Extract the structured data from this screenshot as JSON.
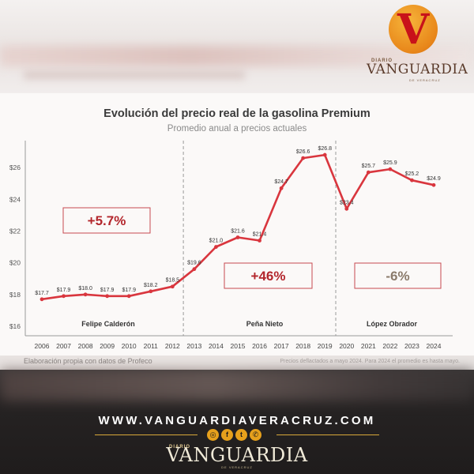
{
  "branding": {
    "diario": "DIARIO",
    "name": "VANGUARDIA",
    "sub": "DE VERACRUZ",
    "website": "WWW.VANGUARDIAVERACRUZ.COM",
    "social_icons": [
      "instagram-icon",
      "facebook-icon",
      "twitter-icon",
      "whatsapp-icon"
    ],
    "accent_color": "#e6a01c",
    "logo_red": "#c8121a"
  },
  "footnote": {
    "source": "Elaboración propia con datos de Profeco",
    "note": "Precios deflactados a mayo 2024. Para 2024 el promedio es hasta mayo."
  },
  "chart_data": {
    "type": "line",
    "title": "Evolución del precio real de la gasolina Premium",
    "subtitle": "Promedio anual a precios actuales",
    "x": [
      "2006",
      "2007",
      "2008",
      "2009",
      "2010",
      "2011",
      "2012",
      "2013",
      "2014",
      "2015",
      "2016",
      "2017",
      "2018",
      "2019",
      "2020",
      "2021",
      "2022",
      "2023",
      "2024"
    ],
    "values": [
      17.7,
      17.9,
      18.0,
      17.9,
      17.9,
      18.2,
      18.5,
      19.6,
      21.0,
      21.6,
      21.4,
      24.7,
      26.6,
      26.8,
      23.4,
      25.7,
      25.9,
      25.2,
      24.9
    ],
    "data_labels": [
      "$17.7",
      "$17.9",
      "$18.0",
      "$17.9",
      "$17.9",
      "$18.2",
      "$18.5",
      "$19.6",
      "$21.0",
      "$21.6",
      "$21.4",
      "$24.7",
      "$26.6",
      "$26.8",
      "$23.4",
      "$25.7",
      "$25.9",
      "$25.2",
      "$24.9"
    ],
    "yticks": [
      "$16",
      "$18",
      "$20",
      "$22",
      "$24",
      "$26"
    ],
    "ytick_values": [
      16,
      18,
      20,
      22,
      24,
      26
    ],
    "ylim": [
      15.4,
      27.7
    ],
    "line_color": "#d9363e",
    "dividers_after": [
      "2012",
      "2019"
    ],
    "periods": [
      {
        "name": "Felipe Calderón",
        "change": "+5.7%",
        "change_color": "#b3262c"
      },
      {
        "name": "Peña Nieto",
        "change": "+46%",
        "change_color": "#b3262c"
      },
      {
        "name": "López Obrador",
        "change": "-6%",
        "change_color": "#8a7a6a"
      }
    ],
    "grid": false
  }
}
